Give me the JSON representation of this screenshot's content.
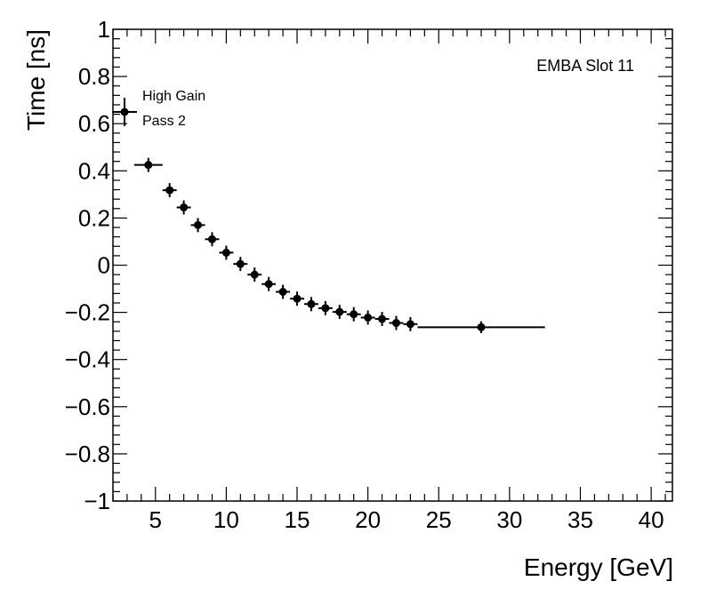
{
  "chart_data": {
    "type": "scatter",
    "title": "",
    "xlabel": "Energy [GeV]",
    "ylabel": "Time [ns]",
    "xlim": [
      2.0,
      41.5
    ],
    "ylim": [
      -1,
      1
    ],
    "xticks": [
      5,
      10,
      15,
      20,
      25,
      30,
      35,
      40
    ],
    "xtick_labels": [
      "5",
      "10",
      "15",
      "20",
      "25",
      "30",
      "35",
      "40"
    ],
    "yticks": [
      -1,
      -0.8,
      -0.6,
      -0.4,
      -0.2,
      0,
      0.2,
      0.4,
      0.6,
      0.8,
      1
    ],
    "ytick_labels": [
      "−1",
      "−0.8",
      "−0.6",
      "−0.4",
      "−0.2",
      "0",
      "0.2",
      "0.4",
      "0.6",
      "0.8",
      "1"
    ],
    "annotation": "EMBA Slot 11",
    "legend": {
      "position": "top-left",
      "entries": [
        {
          "label_lines": [
            "High Gain",
            "Pass 2"
          ]
        }
      ]
    },
    "series": [
      {
        "name": "High Gain Pass 2",
        "points": [
          {
            "x": 4.5,
            "y": 0.425,
            "xerr": 1.0,
            "yerr": 0.03
          },
          {
            "x": 6.0,
            "y": 0.318,
            "xerr": 0.5,
            "yerr": 0.03
          },
          {
            "x": 7.0,
            "y": 0.245,
            "xerr": 0.5,
            "yerr": 0.03
          },
          {
            "x": 8.0,
            "y": 0.17,
            "xerr": 0.5,
            "yerr": 0.03
          },
          {
            "x": 9.0,
            "y": 0.11,
            "xerr": 0.5,
            "yerr": 0.03
          },
          {
            "x": 10.0,
            "y": 0.053,
            "xerr": 0.5,
            "yerr": 0.03
          },
          {
            "x": 11.0,
            "y": 0.005,
            "xerr": 0.5,
            "yerr": 0.03
          },
          {
            "x": 12.0,
            "y": -0.04,
            "xerr": 0.5,
            "yerr": 0.03
          },
          {
            "x": 13.0,
            "y": -0.08,
            "xerr": 0.5,
            "yerr": 0.03
          },
          {
            "x": 14.0,
            "y": -0.113,
            "xerr": 0.5,
            "yerr": 0.03
          },
          {
            "x": 15.0,
            "y": -0.142,
            "xerr": 0.5,
            "yerr": 0.03
          },
          {
            "x": 16.0,
            "y": -0.165,
            "xerr": 0.5,
            "yerr": 0.03
          },
          {
            "x": 17.0,
            "y": -0.182,
            "xerr": 0.5,
            "yerr": 0.03
          },
          {
            "x": 18.0,
            "y": -0.198,
            "xerr": 0.5,
            "yerr": 0.03
          },
          {
            "x": 19.0,
            "y": -0.208,
            "xerr": 0.5,
            "yerr": 0.03
          },
          {
            "x": 20.0,
            "y": -0.222,
            "xerr": 0.5,
            "yerr": 0.03
          },
          {
            "x": 21.0,
            "y": -0.228,
            "xerr": 0.5,
            "yerr": 0.03
          },
          {
            "x": 22.0,
            "y": -0.245,
            "xerr": 0.5,
            "yerr": 0.03
          },
          {
            "x": 23.0,
            "y": -0.25,
            "xerr": 0.5,
            "yerr": 0.03
          },
          {
            "x": 28.0,
            "y": -0.263,
            "xerr": 4.5,
            "yerr": 0.025
          }
        ]
      }
    ]
  }
}
